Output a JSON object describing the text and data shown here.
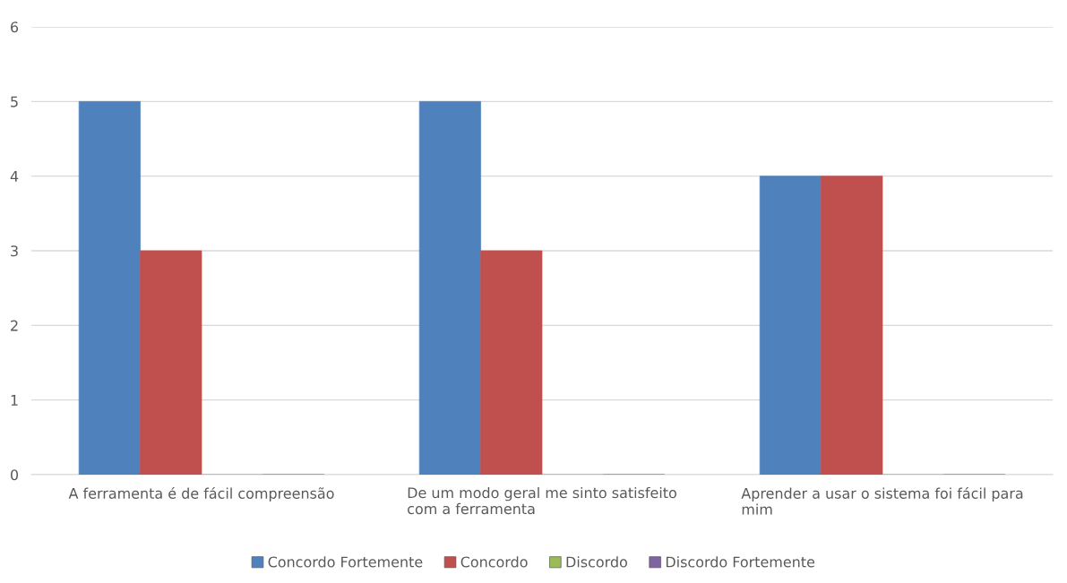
{
  "chart_data": {
    "type": "bar",
    "categories": [
      "A ferramenta é de fácil compreensão",
      "De um modo geral me sinto satisfeito\ncom a ferramenta",
      "Aprender a usar o sistema foi fácil para\nmim"
    ],
    "series": [
      {
        "name": "Concordo Fortemente",
        "color": "#4f81bd",
        "values": [
          5,
          5,
          4
        ]
      },
      {
        "name": "Concordo",
        "color": "#c0504d",
        "values": [
          3,
          3,
          4
        ]
      },
      {
        "name": "Discordo",
        "color": "#9bbb59",
        "values": [
          0,
          0,
          0
        ]
      },
      {
        "name": "Discordo Fortemente",
        "color": "#8064a2",
        "values": [
          0,
          0,
          0
        ]
      }
    ],
    "ylim": [
      0,
      6
    ],
    "yticks": [
      0,
      1,
      2,
      3,
      4,
      5,
      6
    ],
    "grid": "y",
    "legend": "bottom"
  }
}
